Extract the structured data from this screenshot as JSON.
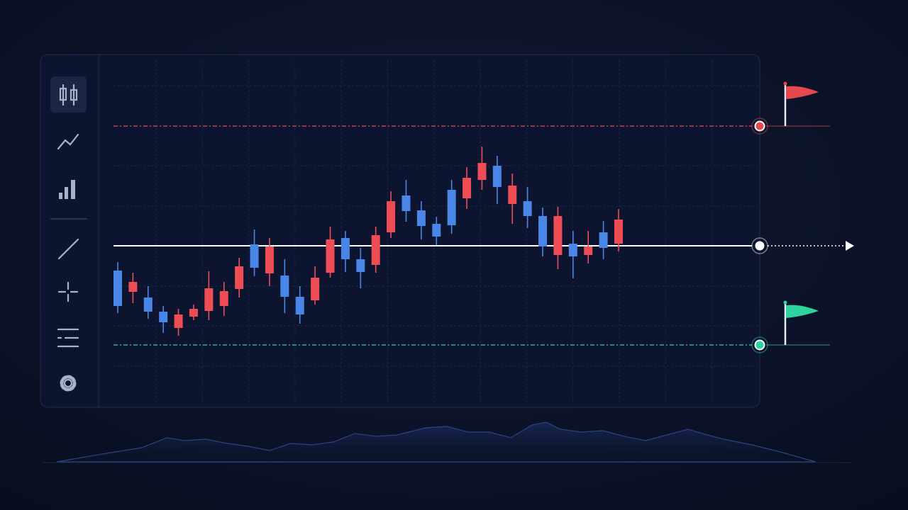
{
  "chart_data": {
    "type": "candlestick",
    "categories": [
      null,
      null,
      null,
      null,
      null,
      null,
      null,
      null,
      null,
      null,
      null,
      null,
      null,
      null,
      null,
      null,
      null,
      null,
      null,
      null,
      null,
      null,
      null,
      null,
      null,
      null,
      null,
      null,
      null,
      null,
      null,
      null,
      null,
      null
    ],
    "open": [
      191,
      161,
      153,
      133,
      110,
      126,
      134,
      141,
      165,
      228,
      187,
      184,
      154,
      149,
      188,
      237,
      207,
      199,
      245,
      297,
      276,
      257,
      305,
      293,
      319,
      339,
      285,
      289,
      268,
      213,
      229,
      213,
      245,
      229
    ],
    "high": [
      203,
      188,
      169,
      141,
      137,
      143,
      190,
      175,
      209,
      249,
      237,
      207,
      169,
      197,
      253,
      247,
      223,
      253,
      303,
      319,
      289,
      267,
      319,
      337,
      366,
      353,
      328,
      309,
      280,
      281,
      247,
      247,
      261,
      278
    ],
    "low": [
      131,
      145,
      123,
      103,
      99,
      121,
      121,
      127,
      153,
      183,
      169,
      131,
      116,
      143,
      181,
      189,
      166,
      188,
      237,
      260,
      235,
      227,
      243,
      278,
      305,
      285,
      257,
      251,
      211,
      193,
      180,
      201,
      207,
      218
    ],
    "close": [
      141,
      175,
      133,
      118,
      129,
      137,
      166,
      162,
      197,
      195,
      225,
      154,
      129,
      181,
      235,
      207,
      189,
      241,
      289,
      275,
      254,
      239,
      255,
      322,
      343,
      309,
      311,
      268,
      225,
      268,
      211,
      225,
      223,
      263
    ],
    "up_color": "#ef4d55",
    "down_color": "#4a86e8",
    "ylim": [
      0,
      508
    ],
    "yticks": [
      56,
      113,
      169,
      226,
      282,
      339,
      395,
      452
    ],
    "grid": true,
    "levels": [
      {
        "value": 395,
        "color": "#e5484d"
      },
      {
        "value": 226,
        "color": "#ffffff"
      },
      {
        "value": 86,
        "color": "#2ed3a0"
      }
    ]
  }
}
